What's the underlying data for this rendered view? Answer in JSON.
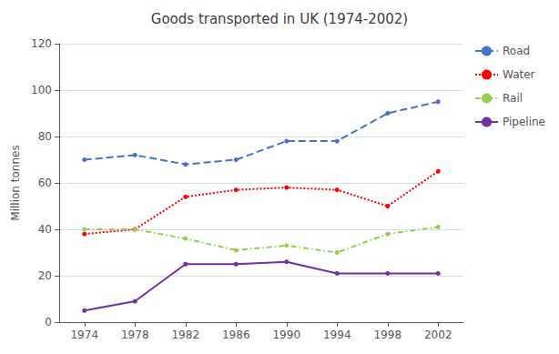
{
  "chart_data": {
    "type": "line",
    "title": "Goods transported in UK (1974-2002)",
    "ylabel": "Million tonnes",
    "x": [
      1974,
      1978,
      1982,
      1986,
      1990,
      1994,
      1998,
      2002
    ],
    "series": [
      {
        "name": "Road",
        "color": "#4472C4",
        "line_style": "dashed",
        "marker": "circle",
        "values": [
          70,
          72,
          68,
          70,
          78,
          78,
          90,
          95
        ]
      },
      {
        "name": "Water",
        "color": "#FF0000",
        "line_style": "dotted",
        "marker": "circle",
        "values": [
          38,
          40,
          54,
          57,
          58,
          57,
          50,
          65
        ]
      },
      {
        "name": "Rail",
        "color": "#92D050",
        "line_style": "dashdot",
        "marker": "circle",
        "values": [
          40,
          40,
          36,
          31,
          33,
          30,
          38,
          41
        ]
      },
      {
        "name": "Pipeline",
        "color": "#7030A0",
        "line_style": "solid",
        "marker": "circle",
        "values": [
          5,
          9,
          25,
          25,
          26,
          21,
          21,
          21
        ]
      }
    ],
    "xlim": [
      1972,
      2004
    ],
    "xticks": [
      1974,
      1978,
      1982,
      1986,
      1990,
      1994,
      1998,
      2002
    ],
    "ylim": [
      0,
      120
    ],
    "yticks": [
      0,
      20,
      40,
      60,
      80,
      100,
      120
    ],
    "grid": "y",
    "legend": "right"
  }
}
